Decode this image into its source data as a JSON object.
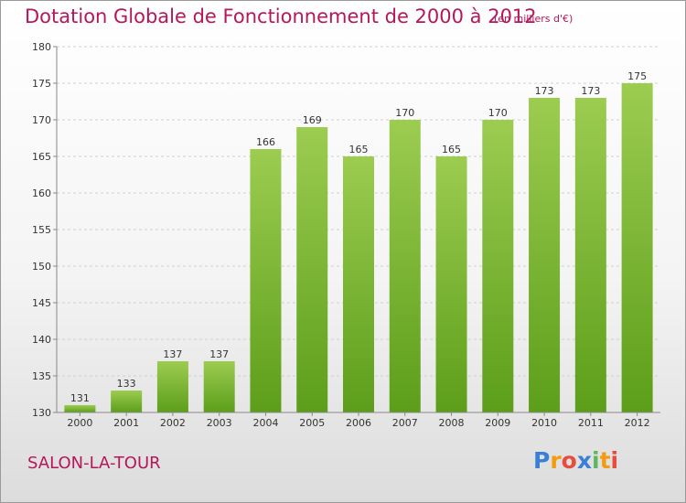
{
  "header": {
    "title": "Dotation Globale de Fonctionnement de 2000 à 2012",
    "unit": "(en milliers d'€)"
  },
  "commune": "SALON-LA-TOUR",
  "logo": {
    "text": "Proxiti",
    "letters": [
      {
        "char": "P",
        "color": "#3a7fd5"
      },
      {
        "char": "r",
        "color": "#f39c12"
      },
      {
        "char": "o",
        "color": "#e74c3c"
      },
      {
        "char": "x",
        "color": "#3a7fd5"
      },
      {
        "char": "i",
        "color": "#5cb85c"
      },
      {
        "char": "t",
        "color": "#f39c12"
      },
      {
        "char": "i",
        "color": "#e74c3c"
      }
    ]
  },
  "colors": {
    "bar_top": "#9ccc50",
    "bar_bottom": "#5c9e1a",
    "title": "#b5175a",
    "grid": "#d0d0d0"
  },
  "chart_data": {
    "type": "bar",
    "title": "Dotation Globale de Fonctionnement de 2000 à 2012",
    "subtitle": "(en milliers d'€)",
    "categories": [
      "2000",
      "2001",
      "2002",
      "2003",
      "2004",
      "2005",
      "2006",
      "2007",
      "2008",
      "2009",
      "2010",
      "2011",
      "2012"
    ],
    "values": [
      131,
      133,
      137,
      137,
      166,
      169,
      165,
      170,
      165,
      170,
      173,
      173,
      175
    ],
    "ylim": [
      130,
      180
    ],
    "yticks": [
      130,
      135,
      140,
      145,
      150,
      155,
      160,
      165,
      170,
      175,
      180
    ],
    "grid": "horizontal dashed",
    "legend": "none"
  }
}
